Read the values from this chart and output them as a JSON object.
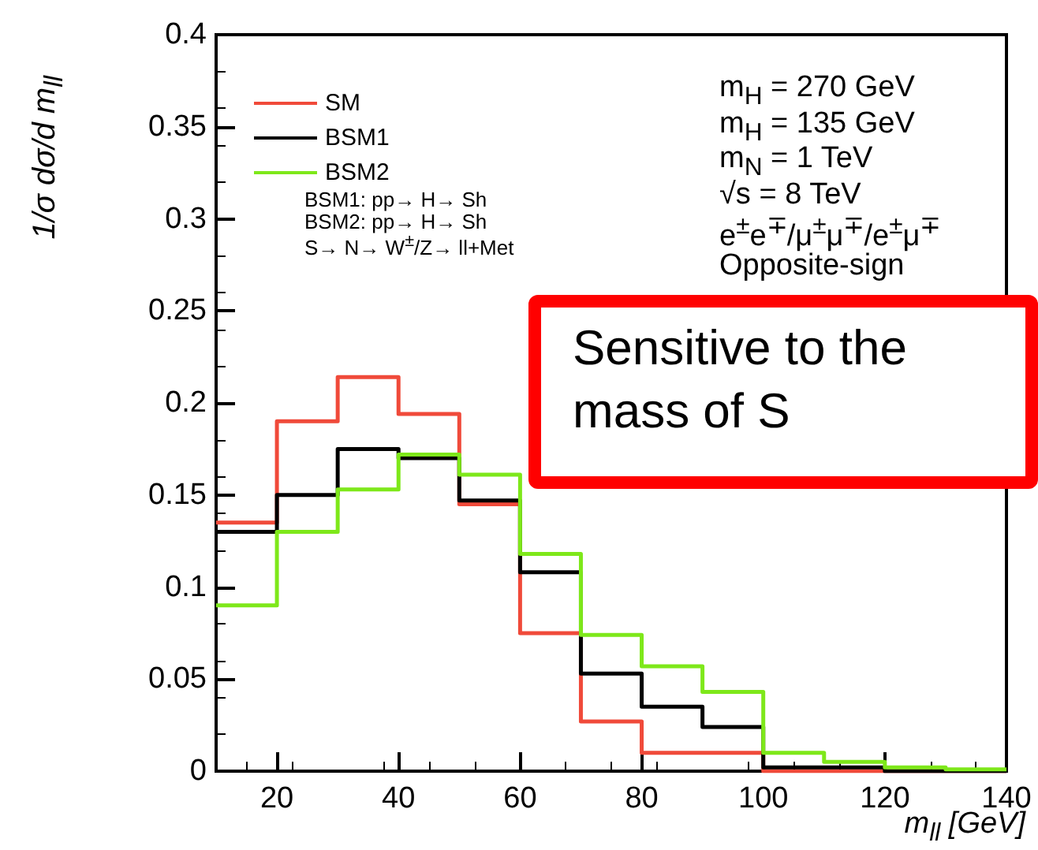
{
  "chart_data": {
    "type": "histogram",
    "xlabel": "m$_{ll}$ [GeV]",
    "ylabel": "1/σ dσ/d m$_{ll}$",
    "bins": [
      10,
      20,
      30,
      40,
      50,
      60,
      70,
      80,
      90,
      100,
      110,
      120,
      130,
      140
    ],
    "series": [
      {
        "name": "SM",
        "color": "#f04a3a",
        "values": [
          0.135,
          0.19,
          0.214,
          0.194,
          0.145,
          0.075,
          0.027,
          0.01,
          0.01,
          0,
          0,
          0,
          0
        ]
      },
      {
        "name": "BSM1",
        "color": "#000000",
        "values": [
          0.13,
          0.15,
          0.175,
          0.17,
          0.147,
          0.108,
          0.053,
          0.035,
          0.024,
          0.002,
          0.002,
          0,
          0
        ]
      },
      {
        "name": "BSM2",
        "color": "#7ee81a",
        "values": [
          0.09,
          0.13,
          0.153,
          0.172,
          0.161,
          0.118,
          0.074,
          0.057,
          0.043,
          0.01,
          0.005,
          0.002,
          0.001
        ]
      }
    ],
    "xlim": [
      10,
      140
    ],
    "xticks": [
      20,
      40,
      60,
      80,
      100,
      120,
      140
    ],
    "ylim": [
      0,
      0.4
    ],
    "yticks": [
      0,
      0.05,
      0.1,
      0.15,
      0.2,
      0.25,
      0.3,
      0.35,
      0.4
    ],
    "legend": "top left",
    "grid": false,
    "marker": "none",
    "line_style": "solid",
    "annotations": [
      "BSM1: pp→ H→ Sh",
      "BSM2: pp→ H→ Sh",
      "S→ N→ W$^{±}$/Z→ ll+Met",
      "m$_{H}$ = 270 GeV",
      "m$_{H}$ = 135 GeV",
      "m$_{N}$ = 1 TeV",
      "√s = 8 TeV",
      "e$^{±}$e$^{∓}$/μ$^{±}$μ$^{∓}$/e$^{±}$μ$^{∓}$",
      "Opposite-sign",
      "Sensitive to the mass of S"
    ]
  }
}
